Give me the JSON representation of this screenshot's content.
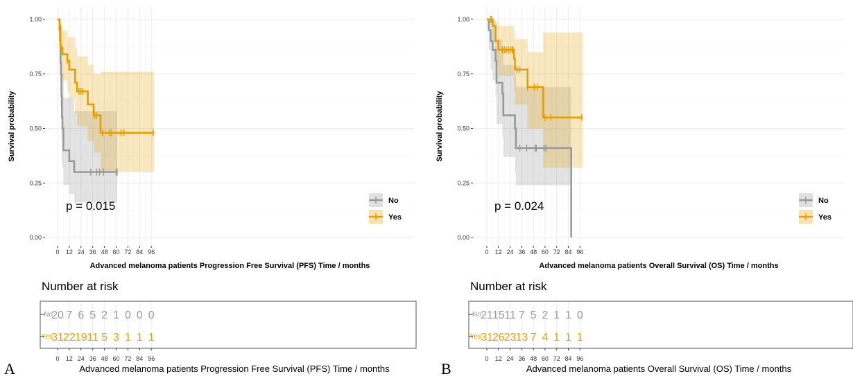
{
  "colors": {
    "no": "#999999",
    "yes": "#E69F00",
    "grid": "#EBEBEB",
    "panel_border": "#555555"
  },
  "legend": {
    "no_label": "No",
    "yes_label": "Yes"
  },
  "risk_table": {
    "title": "Number at risk",
    "row_labels": [
      "No",
      "Yes"
    ]
  },
  "panels": [
    {
      "letter": "A",
      "xlabel": "Advanced melanoma patients Progression Free Survival (PFS) Time / months",
      "ylabel": "Survival probability",
      "pvalue": "p = 0.015",
      "risk_xlabel": "Advanced melanoma patients Progression Free Survival (PFS) Time / months"
    },
    {
      "letter": "B",
      "xlabel": "Advanced melanoma patients Overall Survival (OS) Time / months",
      "ylabel": "Survival probability",
      "pvalue": "p = 0.024",
      "risk_xlabel": "Advanced melanoma patients Overall Survival (OS) Time / months"
    }
  ],
  "chart_data": [
    {
      "type": "line",
      "step": true,
      "xlim": [
        0,
        99
      ],
      "ylim": [
        0,
        1
      ],
      "xticks": [
        0,
        12,
        24,
        36,
        48,
        60,
        72,
        84,
        96
      ],
      "yticks": [
        0,
        0.25,
        0.5,
        0.75,
        1.0
      ],
      "ytick_labels": [
        "0.00",
        "0.25",
        "0.50",
        "0.75",
        "1.00"
      ],
      "grid": true,
      "legend_placement": "bottom-right",
      "series": [
        {
          "name": "No",
          "x": [
            0,
            2,
            2.5,
            3,
            3.5,
            4,
            4.5,
            5,
            6,
            12,
            17,
            61
          ],
          "y": [
            1.0,
            0.95,
            0.9,
            0.8,
            0.75,
            0.65,
            0.55,
            0.5,
            0.4,
            0.35,
            0.3,
            0.3
          ],
          "upper": [
            1.0,
            1.0,
            1.0,
            0.98,
            0.95,
            0.88,
            0.8,
            0.75,
            0.64,
            0.64,
            0.58,
            0.58
          ],
          "lower": [
            1.0,
            0.8,
            0.72,
            0.6,
            0.55,
            0.45,
            0.35,
            0.32,
            0.24,
            0.2,
            0.16,
            0.16
          ],
          "censor_x": [
            34,
            40,
            43,
            47,
            60,
            61
          ]
        },
        {
          "name": "Yes",
          "x": [
            0,
            2,
            3,
            5,
            6,
            10,
            12,
            18,
            20,
            30,
            31,
            37,
            44,
            99
          ],
          "y": [
            1.0,
            0.97,
            0.87,
            0.84,
            0.84,
            0.81,
            0.77,
            0.71,
            0.67,
            0.67,
            0.61,
            0.56,
            0.48,
            0.48
          ],
          "upper": [
            1.0,
            1.0,
            0.97,
            0.95,
            0.95,
            0.92,
            0.92,
            0.87,
            0.83,
            0.83,
            0.79,
            0.75,
            0.76,
            0.76
          ],
          "lower": [
            1.0,
            0.92,
            0.76,
            0.72,
            0.72,
            0.67,
            0.64,
            0.57,
            0.51,
            0.51,
            0.44,
            0.39,
            0.3,
            0.3
          ],
          "censor_x": [
            4,
            10,
            22,
            24,
            26,
            38,
            40,
            46,
            53,
            55,
            65,
            68,
            98
          ]
        }
      ],
      "risk_table": {
        "times": [
          0,
          12,
          24,
          36,
          48,
          60,
          72,
          84,
          96
        ],
        "No": [
          20,
          7,
          6,
          5,
          2,
          1,
          0,
          0,
          0
        ],
        "Yes": [
          31,
          22,
          19,
          11,
          5,
          3,
          1,
          1,
          1
        ]
      }
    },
    {
      "type": "line",
      "step": true,
      "xlim": [
        0,
        99
      ],
      "ylim": [
        0,
        1
      ],
      "xticks": [
        0,
        12,
        24,
        36,
        48,
        60,
        72,
        84,
        96
      ],
      "yticks": [
        0,
        0.25,
        0.5,
        0.75,
        1.0
      ],
      "ytick_labels": [
        "0.00",
        "0.25",
        "0.50",
        "0.75",
        "1.00"
      ],
      "grid": true,
      "legend_placement": "bottom-right",
      "series": [
        {
          "name": "No",
          "x": [
            0,
            2,
            4,
            6,
            9,
            10,
            16,
            17,
            23,
            29,
            30,
            87
          ],
          "y": [
            1.0,
            0.95,
            0.9,
            0.86,
            0.81,
            0.71,
            0.66,
            0.56,
            0.56,
            0.5,
            0.41,
            0.0
          ],
          "upper": [
            1.0,
            1.0,
            1.0,
            0.99,
            0.97,
            0.91,
            0.86,
            0.79,
            0.79,
            0.74,
            0.69,
            0.69
          ],
          "lower": [
            1.0,
            0.86,
            0.77,
            0.72,
            0.65,
            0.52,
            0.46,
            0.37,
            0.37,
            0.3,
            0.24,
            0.24
          ],
          "censor_x": [
            34,
            41,
            50,
            51,
            59,
            61
          ]
        },
        {
          "name": "Yes",
          "x": [
            0,
            6,
            9,
            12,
            28,
            29,
            42,
            58,
            99
          ],
          "y": [
            1.0,
            0.97,
            0.9,
            0.86,
            0.82,
            0.77,
            0.69,
            0.55,
            0.55
          ],
          "upper": [
            1.0,
            1.0,
            0.99,
            0.97,
            0.95,
            0.91,
            0.85,
            0.94,
            0.94
          ],
          "lower": [
            1.0,
            0.9,
            0.79,
            0.74,
            0.68,
            0.61,
            0.5,
            0.32,
            0.32
          ],
          "censor_x": [
            4,
            5,
            16,
            18,
            20,
            22,
            24,
            26,
            27,
            31,
            34,
            42,
            49,
            52,
            60,
            66,
            98
          ]
        }
      ],
      "risk_table": {
        "times": [
          0,
          12,
          24,
          36,
          48,
          60,
          72,
          84,
          96
        ],
        "No": [
          21,
          15,
          11,
          7,
          5,
          2,
          1,
          1,
          0
        ],
        "Yes": [
          31,
          26,
          23,
          13,
          7,
          4,
          1,
          1,
          1
        ]
      }
    }
  ]
}
